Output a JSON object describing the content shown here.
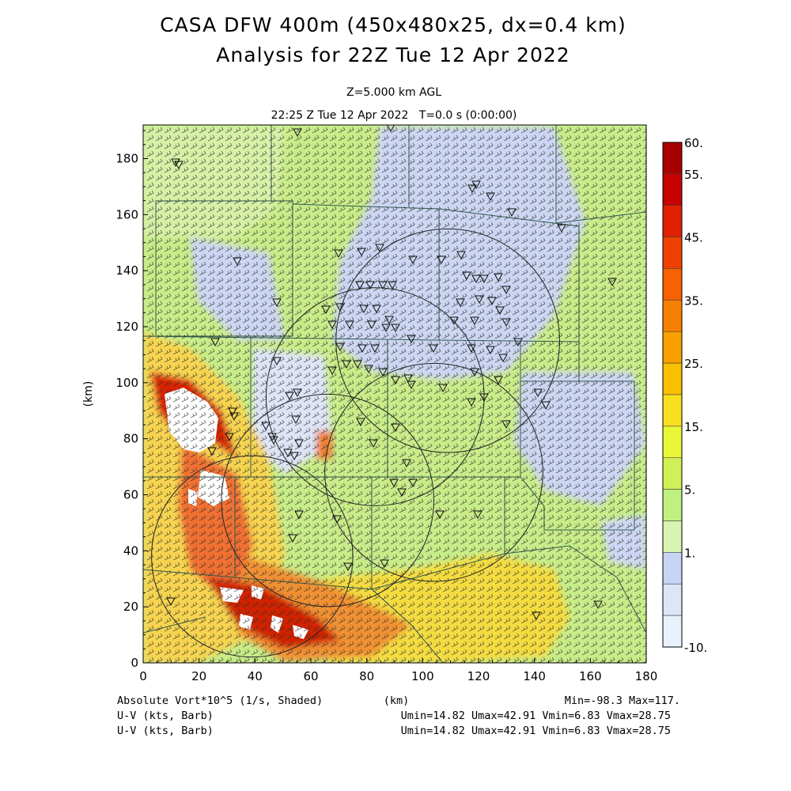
{
  "chart_data": {
    "type": "heatmap",
    "title": "CASA DFW 400m (450x480x25, dx=0.4 km)",
    "subtitle": "Analysis for 22Z Tue 12 Apr 2022",
    "level_label": "Z=5.000 km AGL",
    "time_label": "22:25 Z Tue 12 Apr 2022   T=0.0 s (0:00:00)",
    "xlabel": "(km)",
    "ylabel": "(km)",
    "xlim": [
      0,
      180
    ],
    "ylim": [
      0,
      192
    ],
    "x_ticks": [
      "0",
      "20",
      "40",
      "60",
      "80",
      "100",
      "120",
      "140",
      "160",
      "180"
    ],
    "y_ticks": [
      "0",
      "20",
      "40",
      "60",
      "80",
      "100",
      "120",
      "140",
      "160",
      "180"
    ],
    "colorbar": {
      "labels": [
        "60.",
        "55.",
        "45.",
        "35.",
        "25.",
        "15.",
        "5.",
        "1.",
        "-10."
      ],
      "colors": [
        "#a80000",
        "#c80000",
        "#e02000",
        "#f04000",
        "#f86000",
        "#f88000",
        "#f8a000",
        "#f8c000",
        "#f8e020",
        "#e8f838",
        "#d0f058",
        "#c0f080",
        "#d8f4b0",
        "#c8d4f4",
        "#dce6f8",
        "#e8f2fc"
      ]
    },
    "field_label": "Absolute Vort*10^5 (1/s, Shaded)",
    "field_stats": "Min=-98.3 Max=117.",
    "vectors": [
      {
        "label": "U-V (kts, Barb)",
        "stats": "Umin=14.82 Umax=42.91 Vmin=6.83 Vmax=28.75"
      },
      {
        "label": "U-V (kts, Barb)",
        "stats": "Umin=14.82 Umax=42.91 Vmin=6.83 Vmax=28.75"
      }
    ],
    "radar_rings": [
      {
        "cx": 109,
        "cy": 115,
        "r": 40
      },
      {
        "cx": 83,
        "cy": 95,
        "r": 39
      },
      {
        "cx": 66,
        "cy": 58,
        "r": 38
      },
      {
        "cx": 104,
        "cy": 68,
        "r": 39
      },
      {
        "cx": 39,
        "cy": 38,
        "r": 36
      }
    ]
  }
}
